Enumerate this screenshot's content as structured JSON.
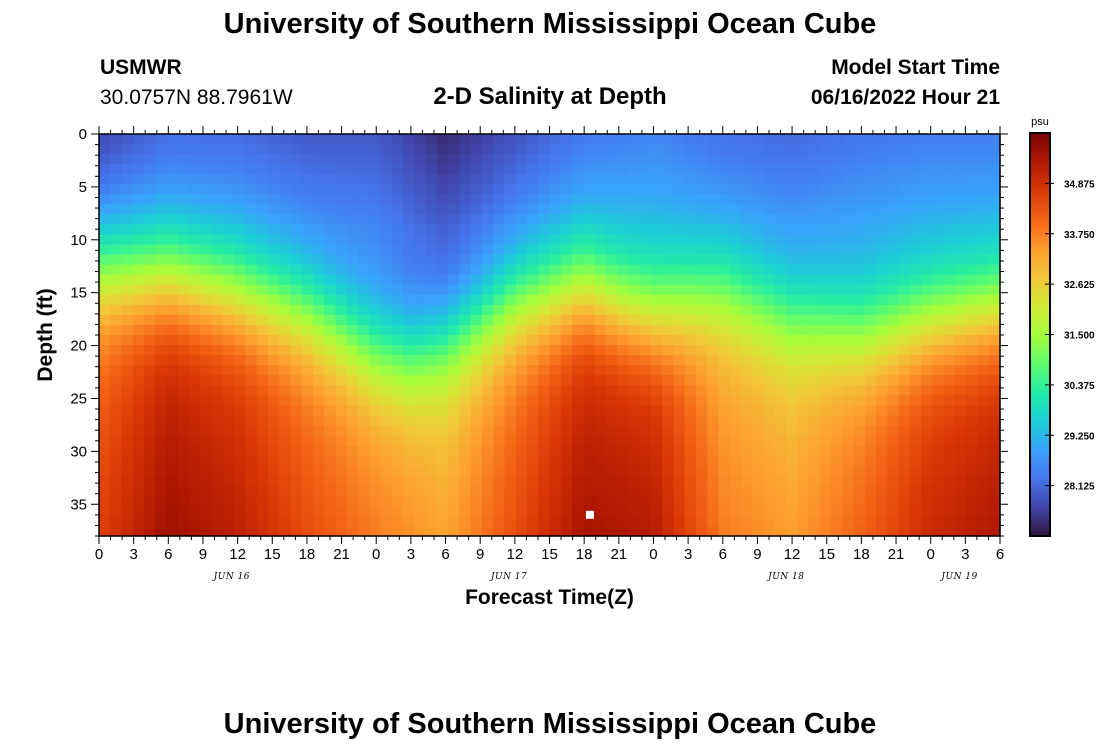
{
  "header": {
    "title": "University of Southern Mississippi Ocean Cube",
    "station": "USMWR",
    "coords": "30.0757N  88.7961W",
    "subtitle": "2-D Salinity at Depth",
    "model_start_label": "Model Start Time",
    "model_start_value": "06/16/2022 Hour 21"
  },
  "footer": {
    "title": "University of Southern Mississippi Ocean Cube"
  },
  "chart_data": {
    "type": "heatmap",
    "title": "2-D Salinity at Depth",
    "xlabel": "Forecast Time(Z)",
    "ylabel": "Depth (ft)",
    "x_range_hours": [
      0,
      78
    ],
    "x_tick_labels": [
      "0",
      "3",
      "6",
      "9",
      "12",
      "15",
      "18",
      "21",
      "0",
      "3",
      "6",
      "9",
      "12",
      "15",
      "18",
      "21",
      "0",
      "3",
      "6",
      "9",
      "12",
      "15",
      "18",
      "21",
      "0",
      "3",
      "6"
    ],
    "date_labels": [
      {
        "label": "JUN 16",
        "hour": 11.5
      },
      {
        "label": "JUN 17",
        "hour": 35.5
      },
      {
        "label": "JUN 18",
        "hour": 59.5
      },
      {
        "label": "JUN 19",
        "hour": 74.5
      }
    ],
    "y_range_ft": [
      0,
      38
    ],
    "y_tick_labels": [
      "0",
      "5",
      "10",
      "15",
      "20",
      "25",
      "30",
      "35"
    ],
    "colorbar": {
      "unit": "psu",
      "range": [
        27,
        36
      ],
      "tick_labels": [
        "34.875",
        "33.750",
        "32.625",
        "31.500",
        "30.375",
        "29.250",
        "28.125"
      ],
      "tick_values": [
        34.875,
        33.75,
        32.625,
        31.5,
        30.375,
        29.25,
        28.125
      ],
      "colors": [
        "#30123b",
        "#4145ab",
        "#4675ed",
        "#39a2fc",
        "#1bcfd4",
        "#24eca6",
        "#61fc6c",
        "#a4fc3b",
        "#d1e834",
        "#f3c63a",
        "#fe9b2d",
        "#f36315",
        "#d93806",
        "#b11901",
        "#7a0403"
      ]
    },
    "halocline_depth_ft": {
      "hours": [
        0,
        6,
        12,
        18,
        24,
        27,
        30,
        36,
        42,
        45,
        48,
        51,
        54,
        60,
        66,
        72,
        78
      ],
      "depths": [
        12.5,
        13,
        14.5,
        16.5,
        20.5,
        21,
        19.5,
        15.5,
        14,
        15.5,
        16.5,
        15.5,
        14.5,
        17,
        18.5,
        17,
        16
      ]
    },
    "surface_salinity_psu": {
      "hours": [
        0,
        6,
        12,
        18,
        24,
        30,
        36,
        42,
        48,
        54,
        60,
        66,
        72,
        78
      ],
      "values": [
        27.6,
        28.1,
        28.1,
        27.9,
        27.9,
        27.3,
        27.8,
        28.3,
        28.5,
        28.2,
        28.1,
        28.3,
        28.4,
        28.4
      ]
    },
    "bottom_salinity_psu": {
      "hours": [
        0,
        6,
        12,
        18,
        24,
        30,
        36,
        42,
        48,
        54,
        60,
        66,
        72,
        78
      ],
      "values": [
        34.6,
        35.6,
        35.2,
        34.4,
        33.8,
        33.3,
        34.4,
        35.5,
        35.3,
        33.8,
        33.4,
        34.1,
        35.0,
        35.4
      ]
    },
    "marker": {
      "hour": 42.5,
      "depth": 36
    }
  }
}
